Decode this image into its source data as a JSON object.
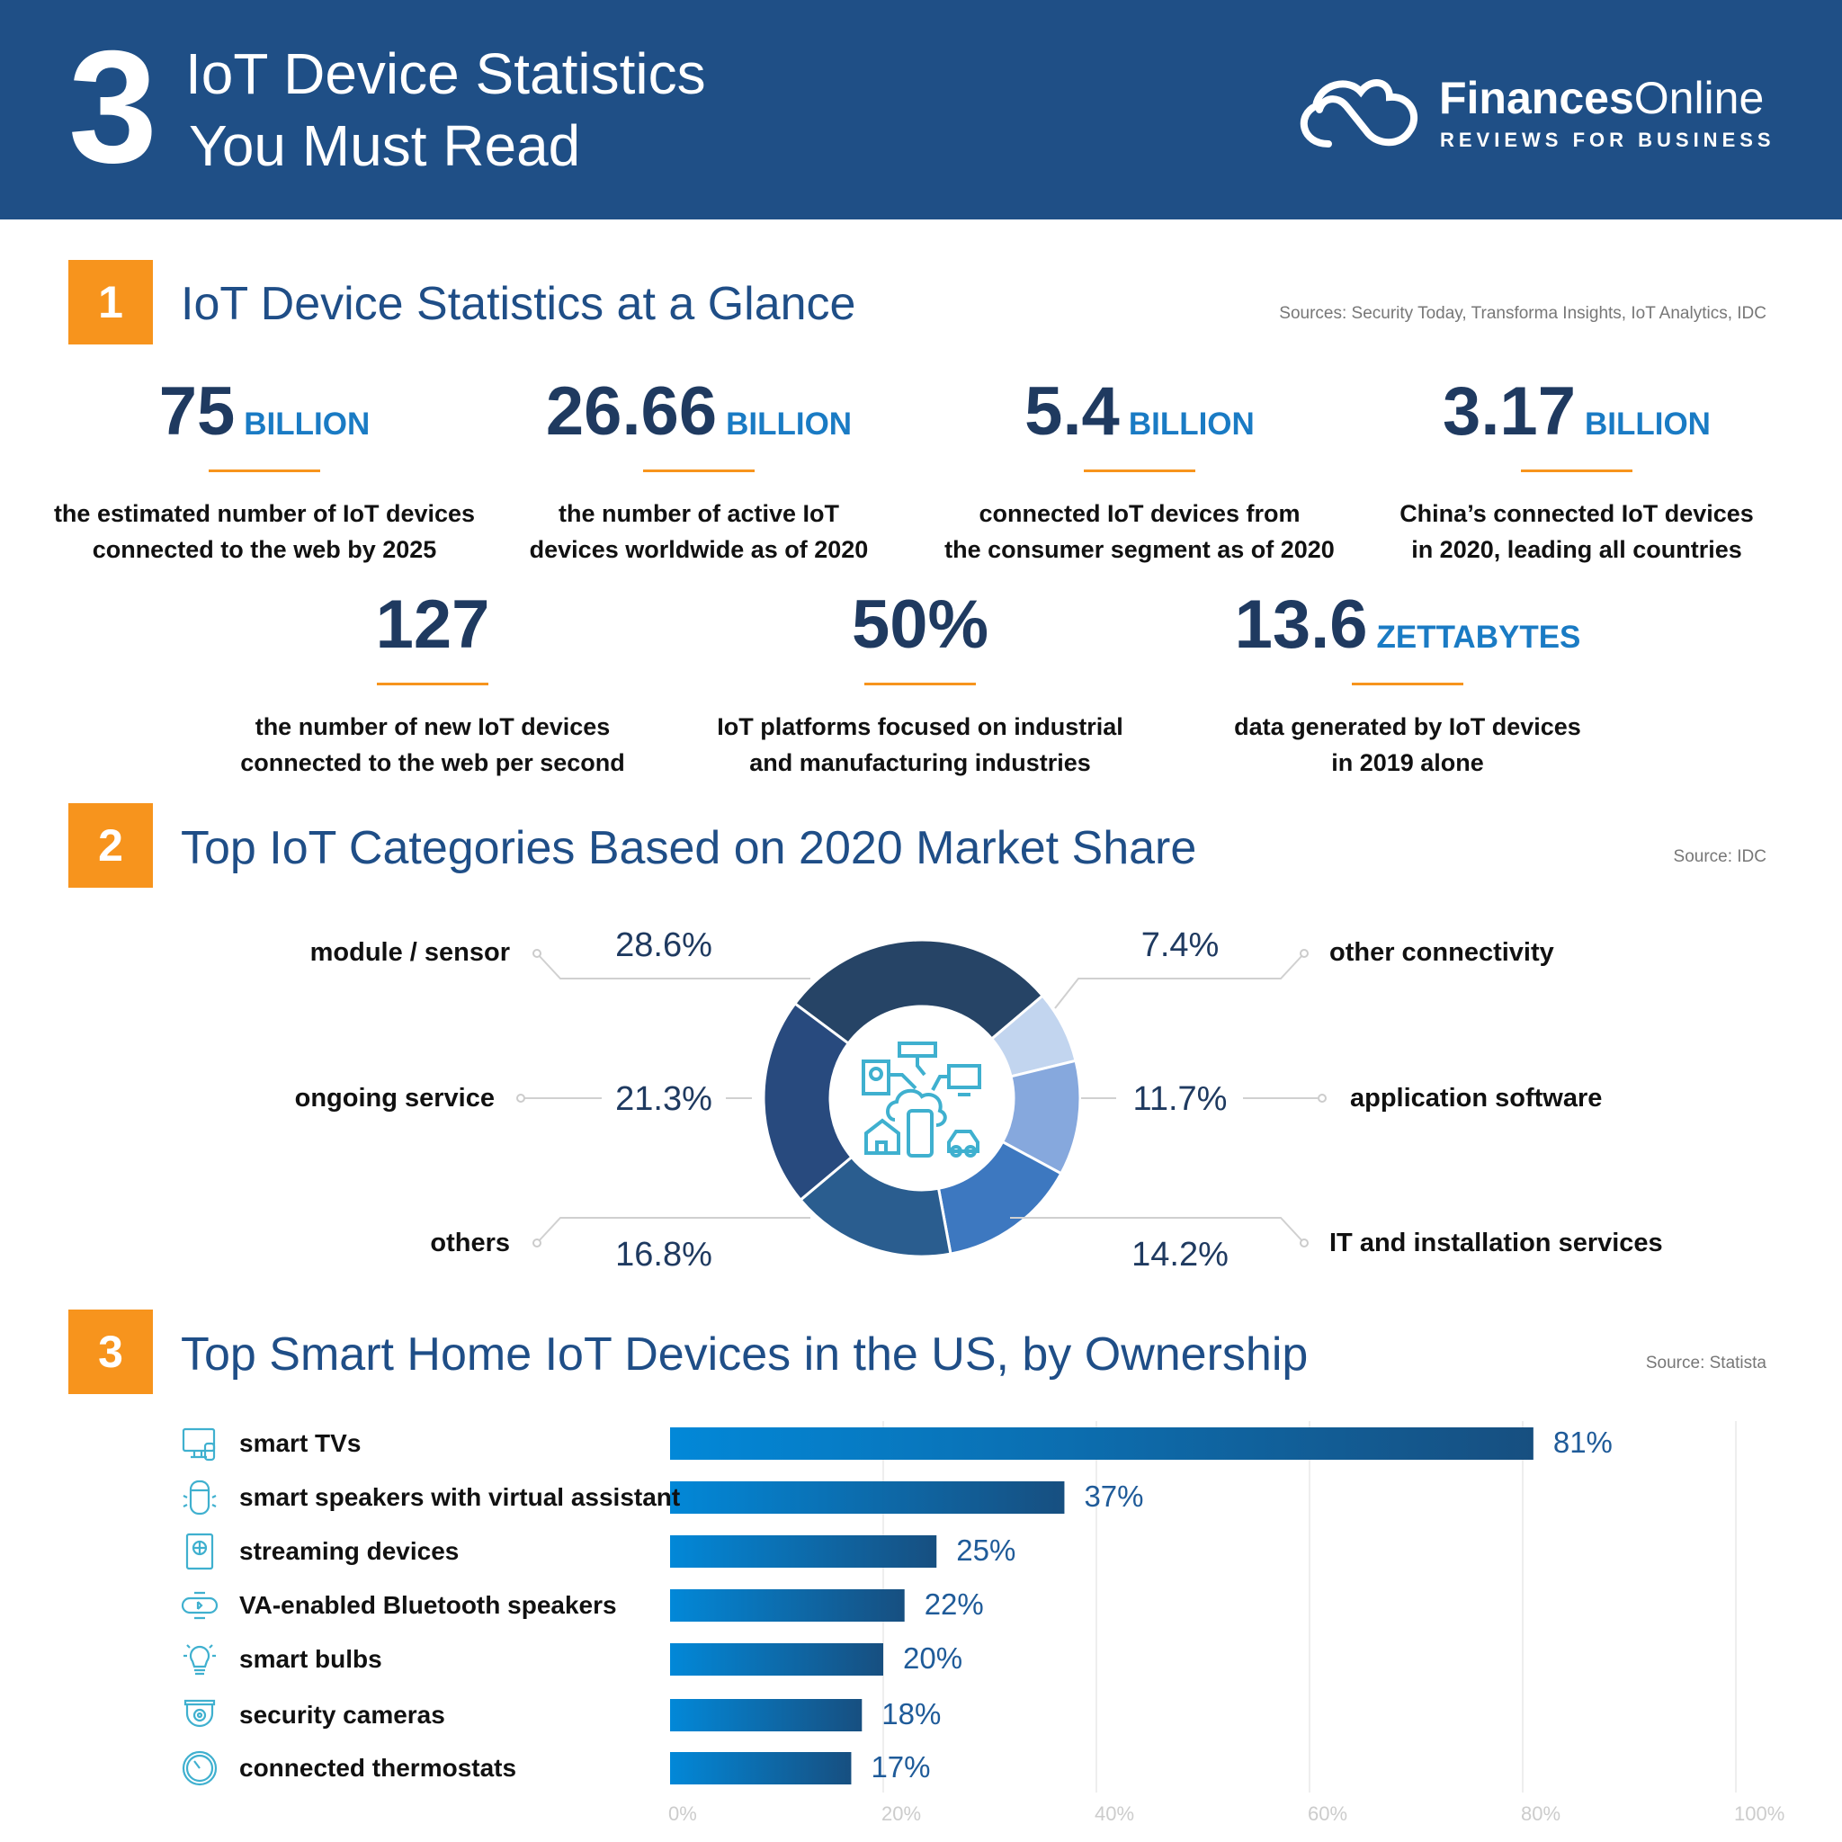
{
  "header": {
    "number": "3",
    "title_line1": "IoT Device Statistics",
    "title_line2": "You Must Read",
    "brand_bold": "Finances",
    "brand_light": "Online",
    "brand_tagline": "REVIEWS FOR BUSINESS",
    "bg_color": "#1f4f86"
  },
  "section1": {
    "number": "1",
    "title": "IoT Device Statistics at a Glance",
    "source": "Sources: Security Today, Transforma Insights, IoT Analytics, IDC",
    "stats": [
      {
        "value": "75",
        "unit": "BILLION",
        "line1": "the estimated number of IoT devices",
        "line2": "connected to the web by 2025"
      },
      {
        "value": "26.66",
        "unit": "BILLION",
        "line1": "the number of active IoT",
        "line2": "devices worldwide as of 2020"
      },
      {
        "value": "5.4",
        "unit": "BILLION",
        "line1": "connected IoT devices from",
        "line2": "the consumer segment as of 2020"
      },
      {
        "value": "3.17",
        "unit": "BILLION",
        "line1": "China’s connected IoT devices",
        "line2": "in 2020, leading all countries"
      },
      {
        "value": "127",
        "unit": "",
        "line1": "the number of new IoT devices",
        "line2": "connected to the web per second"
      },
      {
        "value": "50%",
        "unit": "",
        "line1": "IoT platforms focused on industrial",
        "line2": "and manufacturing industries"
      },
      {
        "value": "13.6",
        "unit": "ZETTABYTES",
        "line1": "data generated by IoT devices",
        "line2": "in 2019 alone"
      }
    ]
  },
  "section2": {
    "number": "2",
    "title": "Top IoT Categories Based on 2020 Market Share",
    "source": "Source: IDC",
    "center_icon": "iot-network-icon"
  },
  "section3": {
    "number": "3",
    "title": "Top Smart Home IoT Devices in the US, by Ownership",
    "source": "Source: Statista"
  },
  "chart_data": [
    {
      "type": "pie",
      "donut": true,
      "slices": [
        {
          "label": "module / sensor",
          "value": 28.6,
          "display": "28.6%",
          "color": "#264466"
        },
        {
          "label": "other connectivity",
          "value": 7.4,
          "display": "7.4%",
          "color": "#c2d5ef"
        },
        {
          "label": "application software",
          "value": 11.7,
          "display": "11.7%",
          "color": "#86a8dd"
        },
        {
          "label": "IT and installation services",
          "value": 14.2,
          "display": "14.2%",
          "color": "#3d78c0"
        },
        {
          "label": "others",
          "value": 16.8,
          "display": "16.8%",
          "color": "#2a5d8f"
        },
        {
          "label": "ongoing service",
          "value": 21.3,
          "display": "21.3%",
          "color": "#284a7e"
        }
      ]
    },
    {
      "type": "bar",
      "orientation": "horizontal",
      "xlim": [
        0,
        100
      ],
      "grid": true,
      "ticks": [
        "0%",
        "20%",
        "40%",
        "60%",
        "80%",
        "100%"
      ],
      "categories": [
        "smart TVs",
        "smart speakers with virtual assistant",
        "streaming devices",
        "VA-enabled Bluetooth speakers",
        "smart bulbs",
        "security cameras",
        "connected thermostats"
      ],
      "icons": [
        "smart-tv-icon",
        "smart-speaker-icon",
        "streaming-device-icon",
        "bluetooth-speaker-icon",
        "smart-bulb-icon",
        "security-camera-icon",
        "thermostat-icon"
      ],
      "values": [
        81,
        37,
        25,
        22,
        20,
        18,
        17
      ],
      "labels": [
        "81%",
        "37%",
        "25%",
        "22%",
        "20%",
        "18%",
        "17%"
      ],
      "bar_gradient": [
        "#0288d8",
        "#174f80"
      ]
    }
  ]
}
